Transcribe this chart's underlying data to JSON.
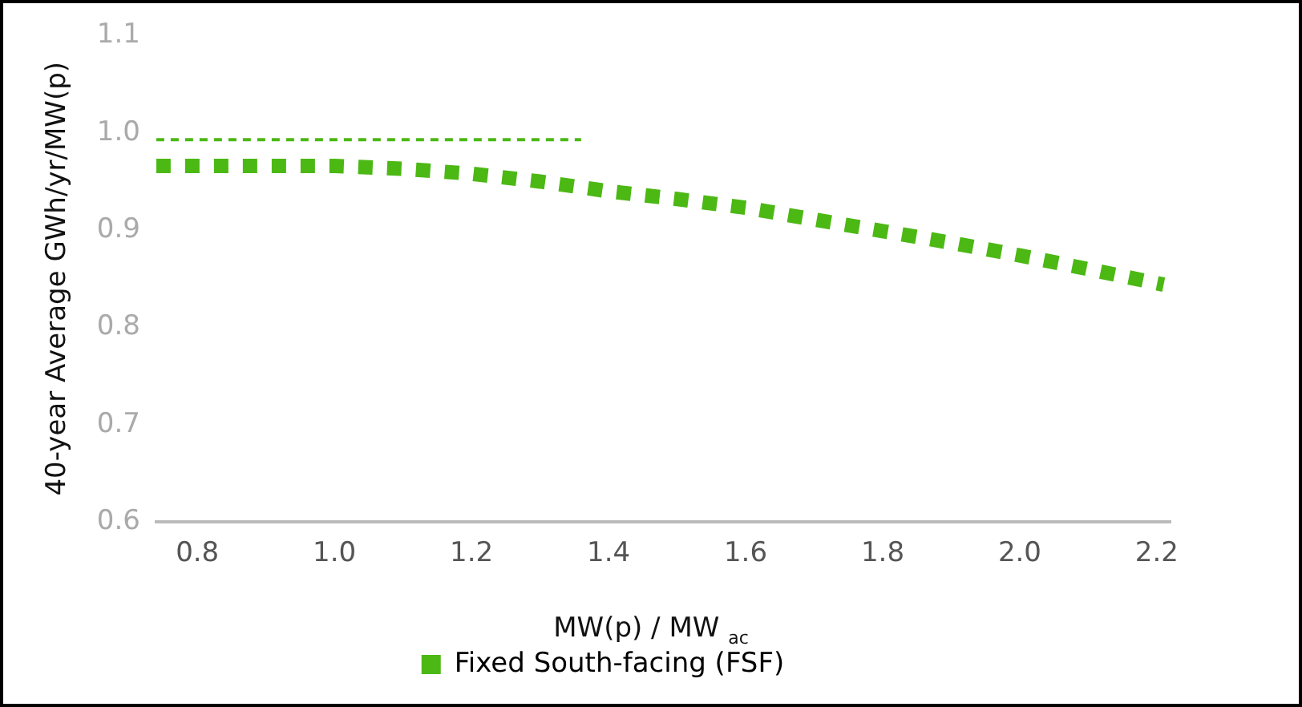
{
  "chart_data": {
    "type": "line",
    "xlabel": "MW(p) / MW $_{ac}$",
    "ylabel": "40-year Average GWh/yr/MW(p)",
    "xlim": [
      0.74,
      2.22
    ],
    "xticks": [
      0.8,
      {
        "value": 1.0,
        "label": "1.0"
      },
      1.2,
      1.4,
      1.6,
      1.8,
      {
        "value": 2.0,
        "label": "2.0"
      },
      2.2
    ],
    "ylim": [
      0.6,
      1.1
    ],
    "yticks": [
      0.6,
      0.7,
      0.8,
      0.9,
      {
        "value": 1.0,
        "label": "1.0"
      },
      1.1
    ],
    "grid": false,
    "legend": "bottom",
    "marker": "none",
    "series": [
      {
        "name": "Fixed South-facing (FSF)",
        "color": "#4cb814",
        "line_style": "dotted",
        "x": [
          0.74,
          0.8,
          1.0,
          1.1,
          1.2,
          1.3,
          1.4,
          1.5,
          1.6,
          1.7,
          1.8,
          1.9,
          2.0,
          2.1,
          2.21
        ],
        "values": [
          0.966,
          0.966,
          0.966,
          0.963,
          0.958,
          0.95,
          0.94,
          0.932,
          0.923,
          0.911,
          0.899,
          0.887,
          0.874,
          0.86,
          0.844
        ]
      },
      {
        "color": "#4cb814",
        "line_style": "dashed",
        "x": [
          0.74,
          1.36
        ],
        "values": [
          0.993,
          0.993
        ]
      }
    ]
  }
}
